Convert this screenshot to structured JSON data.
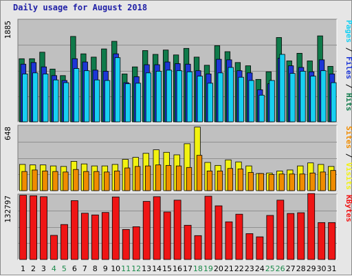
{
  "title": "Daily usage for August 2018",
  "colors": {
    "hits": "#0f7a4a",
    "files": "#1d36d6",
    "pages": "#17d0f2",
    "visits": "#f2f210",
    "sites": "#f08c00",
    "kbytes": "#ef1515",
    "weekend_label": "#1a8a4a",
    "weekday_label": "#000000",
    "panel_bg": "#c0c0c0"
  },
  "chart_data": [
    {
      "type": "bar",
      "name": "hits_files_pages",
      "ylim": [
        0,
        1885
      ],
      "max_label": "1885",
      "ylabel_parts": [
        "Pages",
        " / ",
        "Files",
        " / ",
        "Hits"
      ],
      "categories": [
        "1",
        "2",
        "3",
        "4",
        "5",
        "6",
        "7",
        "8",
        "9",
        "10",
        "11",
        "12",
        "13",
        "14",
        "15",
        "16",
        "17",
        "18",
        "19",
        "20",
        "21",
        "22",
        "23",
        "24",
        "25",
        "26",
        "27",
        "28",
        "29",
        "30",
        "31"
      ],
      "weekend_days": [
        4,
        5,
        11,
        12,
        18,
        19,
        25,
        26
      ],
      "series": [
        {
          "name": "Hits",
          "values": [
            1160,
            1160,
            1280,
            970,
            850,
            1570,
            1250,
            1190,
            1340,
            1480,
            880,
            1010,
            1310,
            1240,
            1320,
            1230,
            1350,
            1190,
            1040,
            1400,
            1290,
            1090,
            1030,
            780,
            920,
            1550,
            1120,
            1260,
            1120,
            1580,
            1020
          ]
        },
        {
          "name": "Files",
          "values": [
            1060,
            1090,
            1010,
            850,
            760,
            1160,
            1100,
            950,
            930,
            1250,
            720,
            830,
            1050,
            1050,
            1100,
            1070,
            1060,
            940,
            880,
            1150,
            1140,
            940,
            900,
            590,
            700,
            1170,
            1030,
            1000,
            920,
            1140,
            880
          ]
        },
        {
          "name": "Pages",
          "values": [
            880,
            900,
            880,
            770,
            720,
            980,
            940,
            770,
            760,
            1180,
            700,
            710,
            900,
            930,
            950,
            940,
            920,
            840,
            710,
            900,
            1000,
            820,
            760,
            490,
            760,
            1240,
            890,
            930,
            840,
            940,
            720
          ]
        }
      ]
    },
    {
      "type": "bar",
      "name": "visits_sites",
      "ylim": [
        0,
        648
      ],
      "max_label": "648",
      "ylabel_parts": [
        "Sites",
        " / ",
        "Visits"
      ],
      "categories": [
        "1",
        "2",
        "3",
        "4",
        "5",
        "6",
        "7",
        "8",
        "9",
        "10",
        "11",
        "12",
        "13",
        "14",
        "15",
        "16",
        "17",
        "18",
        "19",
        "20",
        "21",
        "22",
        "23",
        "24",
        "25",
        "26",
        "27",
        "28",
        "29",
        "30",
        "31"
      ],
      "series": [
        {
          "name": "Visits",
          "values": [
            260,
            255,
            255,
            245,
            240,
            290,
            265,
            245,
            245,
            260,
            310,
            330,
            370,
            405,
            380,
            355,
            465,
            630,
            280,
            250,
            305,
            285,
            245,
            170,
            175,
            195,
            205,
            245,
            275,
            260,
            240
          ]
        },
        {
          "name": "Sites",
          "values": [
            190,
            205,
            195,
            190,
            185,
            210,
            190,
            190,
            185,
            195,
            225,
            240,
            245,
            255,
            250,
            245,
            230,
            350,
            195,
            195,
            220,
            215,
            180,
            170,
            160,
            165,
            165,
            165,
            175,
            185,
            200
          ]
        }
      ]
    },
    {
      "type": "bar",
      "name": "kbytes",
      "ylim": [
        0,
        132797
      ],
      "max_label": "132797",
      "ylabel_parts": [
        "KBytes"
      ],
      "categories": [
        "1",
        "2",
        "3",
        "4",
        "5",
        "6",
        "7",
        "8",
        "9",
        "10",
        "11",
        "12",
        "13",
        "14",
        "15",
        "16",
        "17",
        "18",
        "19",
        "20",
        "21",
        "22",
        "23",
        "24",
        "25",
        "26",
        "27",
        "28",
        "29",
        "30",
        "31"
      ],
      "series": [
        {
          "name": "KBytes",
          "values": [
            130500,
            129500,
            127500,
            49000,
            71000,
            119500,
            94000,
            90500,
            95500,
            127000,
            61000,
            66500,
            118000,
            127500,
            96500,
            120500,
            69500,
            48500,
            128500,
            109000,
            76500,
            92000,
            52500,
            46000,
            89500,
            120500,
            93500,
            95000,
            134000,
            75000,
            75000
          ]
        }
      ]
    }
  ]
}
